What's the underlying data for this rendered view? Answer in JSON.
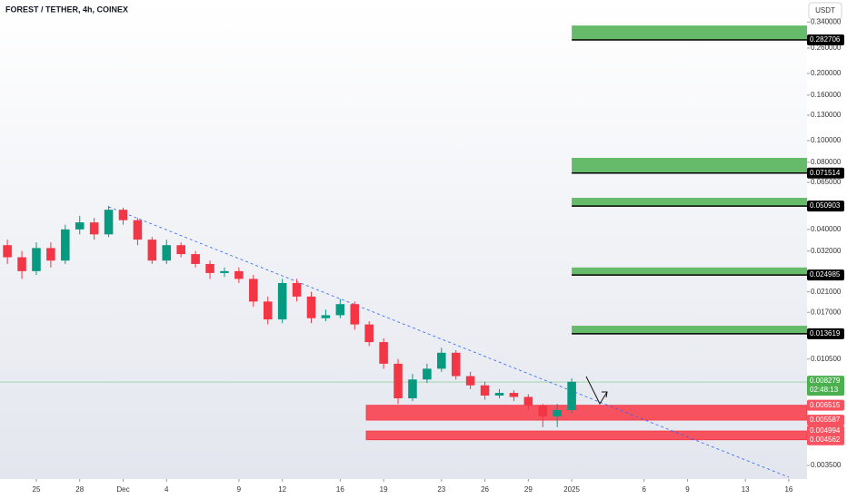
{
  "chart_data": {
    "type": "candlestick",
    "title": "FOREST / TETHER, 4h, COINEX",
    "currency": "USDT",
    "log_scale": true,
    "xlim": [
      -2.51,
      53.26
    ],
    "ylim": [
      0.003042,
      0.4269
    ],
    "xticks": [
      {
        "value": 0,
        "label": "25"
      },
      {
        "value": 3,
        "label": "28"
      },
      {
        "value": 6,
        "label": "Dec"
      },
      {
        "value": 9,
        "label": "4"
      },
      {
        "value": 14,
        "label": "9"
      },
      {
        "value": 17,
        "label": "12"
      },
      {
        "value": 21,
        "label": "16"
      },
      {
        "value": 24,
        "label": "19"
      },
      {
        "value": 28,
        "label": "23"
      },
      {
        "value": 31,
        "label": "26"
      },
      {
        "value": 34,
        "label": "29"
      },
      {
        "value": 37,
        "label": "2025"
      },
      {
        "value": 42,
        "label": "6"
      },
      {
        "value": 45,
        "label": "9"
      },
      {
        "value": 49,
        "label": "13"
      },
      {
        "value": 52,
        "label": "16"
      }
    ],
    "yticks": [
      {
        "value": 0.34,
        "label": "0.340000"
      },
      {
        "value": 0.26,
        "label": "0.260000"
      },
      {
        "value": 0.2,
        "label": "0.200000"
      },
      {
        "value": 0.16,
        "label": "0.160000"
      },
      {
        "value": 0.13,
        "label": "0.130000"
      },
      {
        "value": 0.1,
        "label": "0.100000"
      },
      {
        "value": 0.08,
        "label": "0.080000"
      },
      {
        "value": 0.065,
        "label": "0.065000"
      },
      {
        "value": 0.04,
        "label": "0.040000"
      },
      {
        "value": 0.032,
        "label": "0.032000"
      },
      {
        "value": 0.021,
        "label": "0.021000"
      },
      {
        "value": 0.017,
        "label": "0.017000"
      },
      {
        "value": 0.0105,
        "label": "0.010500"
      },
      {
        "value": 0.0035,
        "label": "0.003500"
      }
    ],
    "x": [
      -2,
      -1,
      0,
      1,
      2,
      3,
      4,
      5,
      6,
      7,
      8,
      9,
      10,
      11,
      12,
      13,
      14,
      15,
      16,
      17,
      18,
      19,
      20,
      21,
      22,
      23,
      24,
      25,
      26,
      27,
      28,
      29,
      30,
      31,
      32,
      33,
      34,
      35,
      36,
      37
    ],
    "open": [
      0.034,
      0.03,
      0.026,
      0.033,
      0.029,
      0.04,
      0.043,
      0.038,
      0.049,
      0.044,
      0.036,
      0.029,
      0.034,
      0.031,
      0.028,
      0.0255,
      0.026,
      0.024,
      0.019,
      0.0158,
      0.023,
      0.02,
      0.016,
      0.0165,
      0.0185,
      0.015,
      0.0125,
      0.01,
      0.007,
      0.0085,
      0.0095,
      0.0112,
      0.0088,
      0.008,
      0.0072,
      0.0074,
      0.0071,
      0.0065,
      0.0058,
      0.0062
    ],
    "high": [
      0.036,
      0.032,
      0.035,
      0.035,
      0.042,
      0.046,
      0.045,
      0.051,
      0.05,
      0.045,
      0.037,
      0.036,
      0.035,
      0.032,
      0.029,
      0.027,
      0.027,
      0.025,
      0.02,
      0.024,
      0.024,
      0.021,
      0.0175,
      0.0195,
      0.019,
      0.0155,
      0.013,
      0.0105,
      0.009,
      0.01,
      0.0118,
      0.0115,
      0.0092,
      0.0083,
      0.0077,
      0.0076,
      0.0073,
      0.0066,
      0.0066,
      0.0086
    ],
    "low": [
      0.028,
      0.024,
      0.025,
      0.027,
      0.028,
      0.038,
      0.036,
      0.037,
      0.042,
      0.034,
      0.028,
      0.028,
      0.03,
      0.027,
      0.024,
      0.0245,
      0.023,
      0.018,
      0.015,
      0.0152,
      0.019,
      0.0152,
      0.0155,
      0.016,
      0.0142,
      0.012,
      0.0095,
      0.0066,
      0.0068,
      0.0082,
      0.0092,
      0.0085,
      0.0077,
      0.0069,
      0.007,
      0.0068,
      0.0062,
      0.0052,
      0.0052,
      0.006
    ],
    "close": [
      0.03,
      0.026,
      0.033,
      0.029,
      0.04,
      0.043,
      0.038,
      0.049,
      0.044,
      0.036,
      0.029,
      0.034,
      0.031,
      0.028,
      0.0255,
      0.026,
      0.024,
      0.019,
      0.0158,
      0.023,
      0.02,
      0.016,
      0.0165,
      0.0185,
      0.015,
      0.0125,
      0.01,
      0.007,
      0.0085,
      0.0095,
      0.0112,
      0.0088,
      0.008,
      0.0072,
      0.0074,
      0.0071,
      0.0065,
      0.0058,
      0.0062,
      0.0083
    ],
    "up_color": "#089981",
    "down_color": "#f23645",
    "current_price": {
      "value": 0.008279,
      "label": "0.008279",
      "countdown": "02:48:13",
      "color": "#4caf50"
    },
    "trendline": {
      "x": [
        5,
        52
      ],
      "y": [
        0.0505,
        0.0031
      ],
      "color": "#2962ff"
    },
    "target_zones": [
      {
        "start": 37,
        "top": 0.328,
        "bottom": {
          "value": 0.282706,
          "label": "0.282706"
        }
      },
      {
        "start": 37,
        "top": 0.0837,
        "bottom": {
          "value": 0.071514,
          "label": "0.071514"
        }
      },
      {
        "start": 37,
        "top": 0.0554,
        "bottom": {
          "value": 0.050903,
          "label": "0.050903"
        }
      },
      {
        "start": 37,
        "top": 0.027,
        "bottom": {
          "value": 0.024985,
          "label": "0.024985"
        }
      },
      {
        "start": 37,
        "top": 0.0148,
        "bottom": {
          "value": 0.013619,
          "label": "0.013619"
        }
      }
    ],
    "target_color": "#66bb6a",
    "support_zones": [
      {
        "start": 22.8,
        "top": {
          "value": 0.006515,
          "label": "0.006515"
        },
        "bottom": {
          "value": 0.005587,
          "label": "0.005587"
        }
      },
      {
        "start": 22.8,
        "top": {
          "value": 0.004994,
          "label": "0.004994"
        },
        "bottom": {
          "value": 0.004562,
          "label": "0.004562"
        }
      }
    ],
    "support_color": "#f7525f"
  }
}
